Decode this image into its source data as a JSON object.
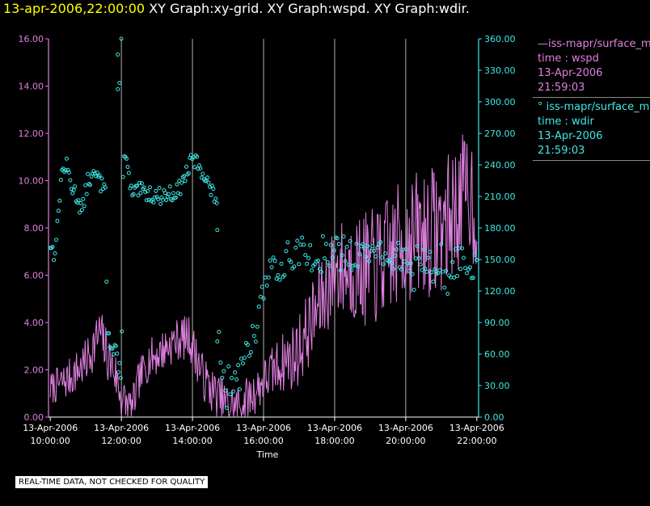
{
  "header": {
    "timestamp": "13-apr-2006,22:00:00",
    "titles": "XY Graph:xy-grid.  XY Graph:wspd.  XY Graph:wdir."
  },
  "colors": {
    "wspd": "#e080e0",
    "wdir": "#40e8e8",
    "grid": "#b0b0b0"
  },
  "legend": {
    "wspd": {
      "line1": "iss-mapr/surface_m",
      "line2": "time : wspd",
      "line3": "13-Apr-2006",
      "line4": "21:59:03"
    },
    "wdir": {
      "line1": "iss-mapr/surface_m",
      "line2": "time : wdir",
      "line3": "13-Apr-2006",
      "line4": "21:59:03"
    }
  },
  "notice": "REAL-TIME DATA, NOT CHECKED FOR QUALITY",
  "chart_data": {
    "type": "line",
    "xlabel": "Time",
    "x_range_hours": [
      9.95,
      22.05
    ],
    "x_ticks": [
      {
        "hour": 10,
        "date": "13-Apr-2006",
        "time": "10:00:00"
      },
      {
        "hour": 12,
        "date": "13-Apr-2006",
        "time": "12:00:00"
      },
      {
        "hour": 14,
        "date": "13-Apr-2006",
        "time": "14:00:00"
      },
      {
        "hour": 16,
        "date": "13-Apr-2006",
        "time": "16:00:00"
      },
      {
        "hour": 18,
        "date": "13-Apr-2006",
        "time": "18:00:00"
      },
      {
        "hour": 20,
        "date": "13-Apr-2006",
        "time": "20:00:00"
      },
      {
        "hour": 22,
        "date": "13-Apr-2006",
        "time": "22:00:00"
      }
    ],
    "left_axis": {
      "ylim": [
        0,
        16
      ],
      "ticks": [
        "0.00",
        "2.00",
        "4.00",
        "6.00",
        "8.00",
        "10.00",
        "12.00",
        "14.00",
        "16.00"
      ]
    },
    "right_axis": {
      "ylim": [
        0,
        360
      ],
      "ticks": [
        "0.00",
        "30.00",
        "60.00",
        "90.00",
        "120.00",
        "150.00",
        "180.00",
        "210.00",
        "240.00",
        "270.00",
        "300.00",
        "330.00",
        "360.00"
      ]
    },
    "series": [
      {
        "name": "wspd",
        "axis": "left",
        "style": "line",
        "anchors": [
          [
            10.0,
            1.2
          ],
          [
            10.5,
            1.6
          ],
          [
            11.0,
            2.3
          ],
          [
            11.4,
            3.6
          ],
          [
            11.6,
            2.6
          ],
          [
            11.8,
            2.0
          ],
          [
            12.0,
            0.8
          ],
          [
            12.3,
            0.3
          ],
          [
            12.5,
            1.6
          ],
          [
            12.8,
            2.5
          ],
          [
            13.0,
            2.6
          ],
          [
            13.3,
            3.0
          ],
          [
            13.6,
            3.3
          ],
          [
            13.9,
            3.4
          ],
          [
            14.1,
            2.6
          ],
          [
            14.3,
            1.7
          ],
          [
            14.5,
            1.2
          ],
          [
            14.9,
            0.6
          ],
          [
            15.2,
            0.4
          ],
          [
            15.6,
            0.8
          ],
          [
            16.0,
            1.5
          ],
          [
            16.5,
            2.3
          ],
          [
            16.9,
            2.6
          ],
          [
            17.2,
            3.5
          ],
          [
            17.5,
            4.5
          ],
          [
            17.8,
            5.5
          ],
          [
            18.0,
            6.2
          ],
          [
            18.5,
            6.3
          ],
          [
            19.0,
            6.2
          ],
          [
            19.5,
            6.8
          ],
          [
            20.0,
            7.5
          ],
          [
            20.5,
            7.8
          ],
          [
            21.0,
            8.0
          ],
          [
            21.5,
            9.0
          ],
          [
            21.8,
            9.6
          ],
          [
            22.0,
            8.6
          ]
        ],
        "noise": [
          [
            10.0,
            0.5
          ],
          [
            11.5,
            0.8
          ],
          [
            12.5,
            0.6
          ],
          [
            14.5,
            0.7
          ],
          [
            16.0,
            0.7
          ],
          [
            17.5,
            1.3
          ],
          [
            19.0,
            1.8
          ],
          [
            20.5,
            2.0
          ],
          [
            22.0,
            2.0
          ]
        ],
        "seed": 7
      },
      {
        "name": "wdir",
        "axis": "right",
        "style": "points",
        "anchors": [
          [
            10.0,
            165
          ],
          [
            10.1,
            155
          ],
          [
            10.2,
            180
          ],
          [
            10.3,
            230
          ],
          [
            10.45,
            240
          ],
          [
            10.6,
            220
          ],
          [
            10.75,
            210
          ],
          [
            10.9,
            195
          ],
          [
            11.05,
            225
          ],
          [
            11.3,
            230
          ],
          [
            11.45,
            220
          ],
          [
            11.55,
            228
          ],
          [
            11.6,
            90
          ],
          [
            11.7,
            65
          ],
          [
            11.85,
            60
          ],
          [
            11.95,
            45
          ],
          [
            12.0,
            30
          ],
          [
            12.05,
            252
          ],
          [
            12.15,
            240
          ],
          [
            12.3,
            210
          ],
          [
            12.5,
            215
          ],
          [
            12.8,
            213
          ],
          [
            13.0,
            210
          ],
          [
            13.3,
            212
          ],
          [
            13.6,
            215
          ],
          [
            13.8,
            230
          ],
          [
            14.0,
            245
          ],
          [
            14.2,
            240
          ],
          [
            14.4,
            225
          ],
          [
            14.6,
            210
          ],
          [
            14.7,
            208
          ]
        ],
        "extras": [
          [
            11.9,
            345
          ],
          [
            11.9,
            312
          ],
          [
            11.95,
            318
          ],
          [
            12.0,
            360
          ],
          [
            14.7,
            178
          ]
        ],
        "anchors2": [
          [
            14.7,
            75
          ],
          [
            14.9,
            40
          ],
          [
            15.2,
            30
          ],
          [
            15.5,
            50
          ],
          [
            15.7,
            80
          ],
          [
            15.9,
            110
          ],
          [
            16.1,
            130
          ],
          [
            16.3,
            140
          ],
          [
            16.6,
            150
          ],
          [
            17.0,
            160
          ],
          [
            17.5,
            150
          ],
          [
            18.0,
            162
          ],
          [
            18.5,
            152
          ],
          [
            19.0,
            158
          ],
          [
            19.5,
            155
          ],
          [
            20.0,
            152
          ],
          [
            20.5,
            148
          ],
          [
            21.0,
            140
          ],
          [
            21.5,
            148
          ],
          [
            22.0,
            145
          ]
        ],
        "noise": 15,
        "seed": 13
      }
    ]
  }
}
